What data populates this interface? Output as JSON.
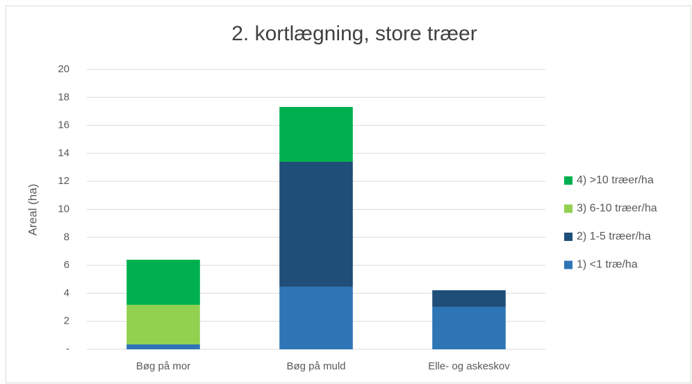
{
  "chart_data": {
    "type": "stacked_bar",
    "title": "2. kortlægning, store træer",
    "y_label": "Areal (ha)",
    "categories": [
      "Bøg på mor",
      "Bøg på muld",
      "Elle- og askeskov"
    ],
    "series": [
      {
        "name": "1) <1 træ/ha",
        "color": "#2e75b6",
        "values": [
          0.35,
          4.47,
          3.03
        ]
      },
      {
        "name": "2) 1-5 træer/ha",
        "color": "#1f4e79",
        "values": [
          0,
          8.93,
          1.19
        ]
      },
      {
        "name": "3) 6-10 træer/ha",
        "color": "#92d050",
        "values": [
          2.83,
          0,
          0
        ]
      },
      {
        "name": "4) >10 træer/ha",
        "color": "#00b050",
        "values": [
          3.22,
          3.92,
          0
        ]
      }
    ],
    "ylim": [
      0,
      20
    ],
    "yticks": [
      {
        "value": 0,
        "label": "-"
      },
      2,
      4,
      6,
      8,
      10,
      12,
      14,
      16,
      18,
      20
    ],
    "grid": true,
    "legend": "right"
  }
}
